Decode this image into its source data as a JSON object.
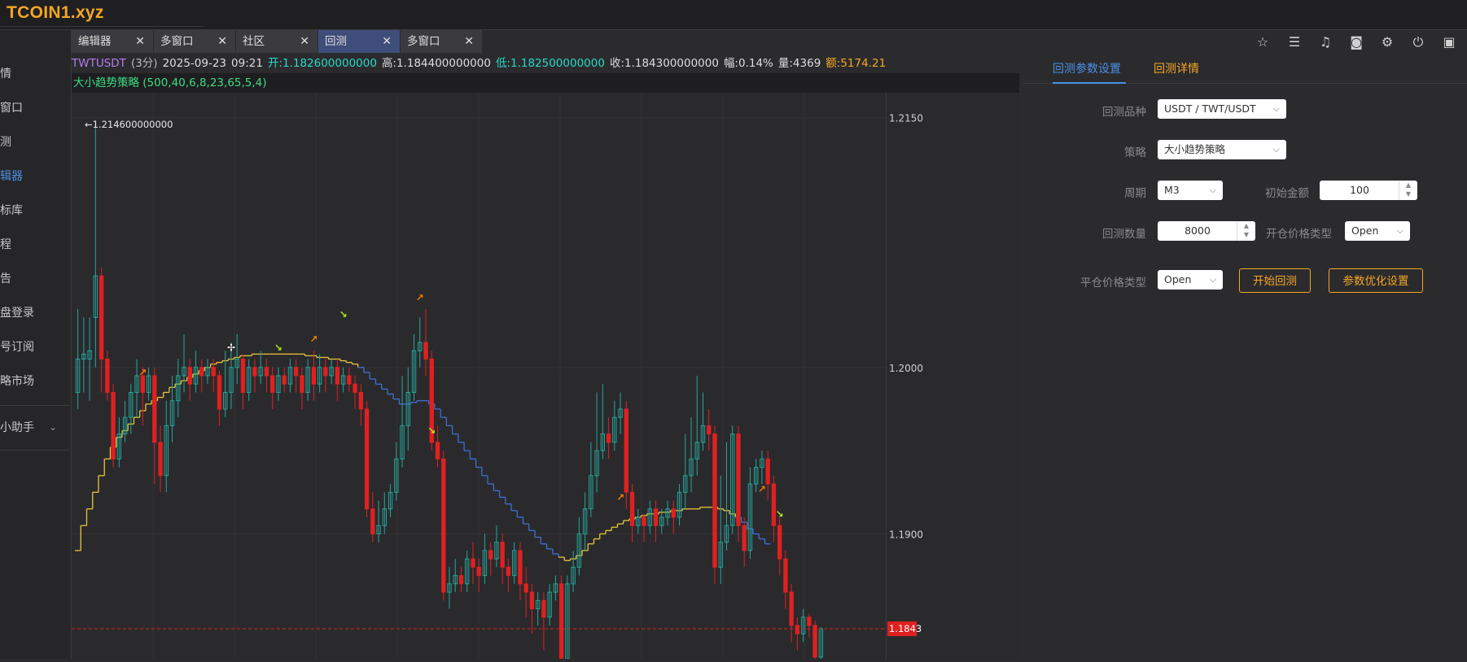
{
  "brand": "TCOIN1.xyz",
  "sidebar": {
    "items": [
      {
        "label": "情"
      },
      {
        "label": "窗口"
      },
      {
        "label": "测"
      },
      {
        "label": "辑器",
        "active": true
      },
      {
        "label": "标库"
      },
      {
        "label": "程"
      },
      {
        "label": "告"
      },
      {
        "label": "盘登录"
      },
      {
        "label": "号订阅"
      },
      {
        "label": "略市场"
      }
    ],
    "assistant": "小助手"
  },
  "tabs": [
    {
      "label": "编辑器"
    },
    {
      "label": "多窗口"
    },
    {
      "label": "社区"
    },
    {
      "label": "回测",
      "active": true
    },
    {
      "label": "多窗口"
    }
  ],
  "toolbar_icons": [
    "star-icon",
    "menu-icon",
    "bell-icon",
    "camera-icon",
    "gear-icon",
    "power-icon",
    "image-icon"
  ],
  "ohlc": {
    "symbol": "TWTUSDT",
    "period": "(3分)",
    "date": "2025-09-23",
    "time": "09:21",
    "open": "开:1.182600000000",
    "high": "高:1.184400000000",
    "low": "低:1.182500000000",
    "close": "收:1.184300000000",
    "change": "幅:0.14%",
    "volume": "量:4369",
    "amount": "额:5174.21"
  },
  "strategy_label": "大小趋势策略 (500,40,6,8,23,65,5,4)",
  "chart_data": {
    "type": "candlestick",
    "ymin": 1.1825,
    "ymax": 1.2165,
    "y_ticks": [
      1.215,
      1.2,
      1.19
    ],
    "y_tick_labels": [
      "1.2150",
      "1.2000",
      "1.1900"
    ],
    "last_price_label": "1.1843",
    "last_price": 1.1843,
    "max_marker_label": "←1.214600000000",
    "max_marker_value": 1.2146,
    "candles": [
      [
        1.1985,
        1.2005,
        1.1975,
        1.2035
      ],
      [
        1.2005,
        1.2008,
        1.1985,
        1.203
      ],
      [
        1.2005,
        1.201,
        1.198,
        1.203
      ],
      [
        1.203,
        1.2055,
        1.2,
        1.2146
      ],
      [
        1.2055,
        1.2005,
        1.1985,
        1.206
      ],
      [
        1.2005,
        1.1985,
        1.198,
        1.201
      ],
      [
        1.1985,
        1.1945,
        1.194,
        1.199
      ],
      [
        1.1945,
        1.196,
        1.194,
        1.197
      ],
      [
        1.196,
        1.197,
        1.1955,
        1.198
      ],
      [
        1.197,
        1.1985,
        1.196,
        1.199
      ],
      [
        1.1985,
        1.1995,
        1.197,
        1.2005
      ],
      [
        1.1995,
        1.1985,
        1.1965,
        1.2
      ],
      [
        1.1985,
        1.1995,
        1.198,
        1.2
      ],
      [
        1.1995,
        1.1955,
        1.193,
        1.2
      ],
      [
        1.1955,
        1.1935,
        1.1925,
        1.1965
      ],
      [
        1.1935,
        1.1965,
        1.1925,
        1.198
      ],
      [
        1.1965,
        1.198,
        1.1955,
        1.1995
      ],
      [
        1.198,
        1.1995,
        1.197,
        1.2005
      ],
      [
        1.1995,
        1.2,
        1.1985,
        1.202
      ],
      [
        1.2,
        1.199,
        1.198,
        1.2005
      ],
      [
        1.199,
        1.2,
        1.1985,
        1.201
      ],
      [
        1.2,
        1.1995,
        1.1985,
        1.2005
      ],
      [
        1.1995,
        1.2,
        1.199,
        1.2005
      ],
      [
        1.2,
        1.1995,
        1.1985,
        1.2005
      ],
      [
        1.1995,
        1.1975,
        1.1965,
        1.1998
      ],
      [
        1.1975,
        1.1985,
        1.197,
        1.201
      ],
      [
        1.1985,
        1.2,
        1.1975,
        1.2015
      ],
      [
        1.2,
        1.2005,
        1.199,
        1.202
      ],
      [
        1.2005,
        1.1985,
        1.1975,
        1.2008
      ],
      [
        1.1985,
        1.2,
        1.198,
        1.2005
      ],
      [
        1.2,
        1.1995,
        1.1985,
        1.2005
      ],
      [
        1.1995,
        1.2,
        1.199,
        1.201
      ],
      [
        1.2,
        1.1995,
        1.1985,
        1.2005
      ],
      [
        1.1995,
        1.1985,
        1.1975,
        1.2
      ],
      [
        1.1985,
        1.1995,
        1.198,
        1.2
      ],
      [
        1.1995,
        1.199,
        1.1985,
        1.2
      ],
      [
        1.199,
        1.2,
        1.1985,
        1.2005
      ],
      [
        1.2,
        1.1995,
        1.1985,
        1.2005
      ],
      [
        1.1995,
        1.1985,
        1.1975,
        1.2
      ],
      [
        1.1985,
        1.2,
        1.198,
        1.2005
      ],
      [
        1.2,
        1.199,
        1.198,
        1.201
      ],
      [
        1.199,
        1.2,
        1.1985,
        1.2008
      ],
      [
        1.2,
        1.1995,
        1.1985,
        1.2005
      ],
      [
        1.1995,
        1.2,
        1.199,
        1.2005
      ],
      [
        1.2,
        1.199,
        1.198,
        1.2005
      ],
      [
        1.199,
        1.1995,
        1.1985,
        1.2
      ],
      [
        1.1995,
        1.199,
        1.1985,
        1.2
      ],
      [
        1.199,
        1.1985,
        1.1975,
        1.1995
      ],
      [
        1.1985,
        1.1975,
        1.1965,
        1.199
      ],
      [
        1.1975,
        1.1915,
        1.191,
        1.198
      ],
      [
        1.1915,
        1.19,
        1.1895,
        1.1925
      ],
      [
        1.19,
        1.1905,
        1.1895,
        1.192
      ],
      [
        1.1905,
        1.1915,
        1.19,
        1.1925
      ],
      [
        1.1915,
        1.1925,
        1.191,
        1.193
      ],
      [
        1.1925,
        1.1945,
        1.192,
        1.1955
      ],
      [
        1.1945,
        1.1965,
        1.194,
        1.1995
      ],
      [
        1.1965,
        1.1985,
        1.195,
        1.2
      ],
      [
        1.1985,
        1.201,
        1.198,
        1.202
      ],
      [
        1.201,
        1.2015,
        1.2,
        1.203
      ],
      [
        1.2015,
        1.2005,
        1.1995,
        1.2035
      ],
      [
        1.2005,
        1.1955,
        1.195,
        1.201
      ],
      [
        1.1955,
        1.1945,
        1.194,
        1.1965
      ],
      [
        1.1945,
        1.1865,
        1.186,
        1.195
      ],
      [
        1.1865,
        1.187,
        1.1855,
        1.188
      ],
      [
        1.187,
        1.1875,
        1.1865,
        1.1885
      ],
      [
        1.1875,
        1.187,
        1.1865,
        1.188
      ],
      [
        1.187,
        1.1885,
        1.1865,
        1.189
      ],
      [
        1.1885,
        1.188,
        1.187,
        1.1895
      ],
      [
        1.188,
        1.1875,
        1.1865,
        1.1885
      ],
      [
        1.1875,
        1.189,
        1.187,
        1.19
      ],
      [
        1.189,
        1.1885,
        1.1875,
        1.1895
      ],
      [
        1.1885,
        1.1895,
        1.188,
        1.1905
      ],
      [
        1.1895,
        1.188,
        1.187,
        1.19
      ],
      [
        1.188,
        1.1875,
        1.1865,
        1.1885
      ],
      [
        1.1875,
        1.189,
        1.187,
        1.1895
      ],
      [
        1.189,
        1.187,
        1.186,
        1.1895
      ],
      [
        1.187,
        1.1865,
        1.185,
        1.188
      ],
      [
        1.1865,
        1.1855,
        1.184,
        1.187
      ],
      [
        1.1855,
        1.186,
        1.1845,
        1.1865
      ],
      [
        1.186,
        1.185,
        1.183,
        1.1865
      ],
      [
        1.185,
        1.1865,
        1.1845,
        1.187
      ],
      [
        1.1865,
        1.187,
        1.186,
        1.1875
      ],
      [
        1.187,
        1.1825,
        1.1815,
        1.1875
      ],
      [
        1.1825,
        1.187,
        1.182,
        1.1875
      ],
      [
        1.187,
        1.188,
        1.1865,
        1.189
      ],
      [
        1.188,
        1.19,
        1.1875,
        1.191
      ],
      [
        1.19,
        1.1915,
        1.189,
        1.1925
      ],
      [
        1.1915,
        1.1935,
        1.191,
        1.1955
      ],
      [
        1.1935,
        1.195,
        1.1925,
        1.1985
      ],
      [
        1.195,
        1.196,
        1.1945,
        1.199
      ],
      [
        1.196,
        1.1955,
        1.1945,
        1.197
      ],
      [
        1.1955,
        1.197,
        1.195,
        1.198
      ],
      [
        1.197,
        1.1975,
        1.196,
        1.1985
      ],
      [
        1.1975,
        1.1925,
        1.1915,
        1.198
      ],
      [
        1.1925,
        1.1905,
        1.1895,
        1.193
      ],
      [
        1.1905,
        1.191,
        1.19,
        1.1915
      ],
      [
        1.191,
        1.1905,
        1.1895,
        1.1912
      ],
      [
        1.1905,
        1.1915,
        1.19,
        1.192
      ],
      [
        1.1915,
        1.1905,
        1.1895,
        1.192
      ],
      [
        1.1905,
        1.191,
        1.19,
        1.1915
      ],
      [
        1.191,
        1.1915,
        1.1905,
        1.192
      ],
      [
        1.1915,
        1.191,
        1.19,
        1.192
      ],
      [
        1.191,
        1.1925,
        1.1905,
        1.193
      ],
      [
        1.1925,
        1.1935,
        1.1915,
        1.196
      ],
      [
        1.1935,
        1.1945,
        1.1925,
        1.197
      ],
      [
        1.1945,
        1.1955,
        1.1935,
        1.1995
      ],
      [
        1.1955,
        1.1965,
        1.195,
        1.1985
      ],
      [
        1.1965,
        1.196,
        1.195,
        1.1975
      ],
      [
        1.196,
        1.188,
        1.187,
        1.1965
      ],
      [
        1.188,
        1.1895,
        1.187,
        1.1935
      ],
      [
        1.1895,
        1.1905,
        1.189,
        1.1955
      ],
      [
        1.1905,
        1.196,
        1.19,
        1.1965
      ],
      [
        1.196,
        1.1905,
        1.1895,
        1.1965
      ],
      [
        1.1905,
        1.189,
        1.188,
        1.191
      ],
      [
        1.189,
        1.193,
        1.1885,
        1.194
      ],
      [
        1.193,
        1.194,
        1.1925,
        1.1945
      ],
      [
        1.194,
        1.1945,
        1.193,
        1.195
      ],
      [
        1.1945,
        1.193,
        1.192,
        1.195
      ],
      [
        1.193,
        1.1905,
        1.1895,
        1.1935
      ],
      [
        1.1905,
        1.1885,
        1.1875,
        1.191
      ],
      [
        1.1885,
        1.1865,
        1.1855,
        1.189
      ],
      [
        1.1865,
        1.1845,
        1.1835,
        1.187
      ],
      [
        1.1845,
        1.184,
        1.183,
        1.185
      ],
      [
        1.184,
        1.185,
        1.1835,
        1.1855
      ],
      [
        1.185,
        1.1845,
        1.1838,
        1.1852
      ],
      [
        1.1845,
        1.1826,
        1.1825,
        1.1848
      ],
      [
        1.1826,
        1.1843,
        1.1825,
        1.1844
      ]
    ],
    "step_line": [
      1.189,
      1.1905,
      1.1915,
      1.1925,
      1.1935,
      1.1945,
      1.1952,
      1.1958,
      1.1962,
      1.1966,
      1.197,
      1.1974,
      1.1978,
      1.198,
      1.1982,
      1.1985,
      1.1988,
      1.199,
      1.1992,
      1.1994,
      1.1996,
      1.1998,
      1.2,
      1.2002,
      1.2003,
      1.2004,
      1.2005,
      1.2006,
      1.2007,
      1.2007,
      1.2008,
      1.2008,
      1.2008,
      1.2008,
      1.2008,
      1.2008,
      1.2008,
      1.2008,
      1.2008,
      1.2007,
      1.2007,
      1.2006,
      1.2006,
      1.2005,
      1.2005,
      1.2004,
      1.2003,
      1.2002,
      1.2,
      1.1997,
      1.1993,
      1.199,
      1.1987,
      1.1984,
      1.1981,
      1.1978,
      1.1978,
      1.1979,
      1.198,
      1.198,
      1.1978,
      1.1975,
      1.197,
      1.1965,
      1.196,
      1.1955,
      1.195,
      1.1945,
      1.194,
      1.1935,
      1.193,
      1.1926,
      1.1922,
      1.1918,
      1.1914,
      1.191,
      1.1906,
      1.1902,
      1.1898,
      1.1894,
      1.1891,
      1.1888,
      1.1886,
      1.1884,
      1.1885,
      1.1887,
      1.189,
      1.1894,
      1.1897,
      1.19,
      1.1902,
      1.1904,
      1.1906,
      1.1908,
      1.1909,
      1.191,
      1.1911,
      1.1912,
      1.1912,
      1.1913,
      1.1913,
      1.1914,
      1.1914,
      1.1915,
      1.1915,
      1.1915,
      1.1916,
      1.1916,
      1.1916,
      1.1915,
      1.1914,
      1.1912,
      1.191,
      1.1907,
      1.1903,
      1.19,
      1.1897,
      1.1894
    ],
    "step_colors": [
      "yellow",
      "blue"
    ]
  },
  "backtest": {
    "tabs": [
      {
        "label": "回测参数设置",
        "active": true
      },
      {
        "label": "回测详情"
      }
    ],
    "fields": {
      "symbol_label": "回测品种",
      "symbol_value": "USDT / TWT/USDT",
      "strategy_label": "策略",
      "strategy_value": "大小趋势策略",
      "period_label": "周期",
      "period_value": "M3",
      "init_label": "初始金额",
      "init_value": "100",
      "count_label": "回测数量",
      "count_value": "8000",
      "open_price_label": "开仓价格类型",
      "open_price_value": "Open",
      "close_price_label": "平仓价格类型",
      "close_price_value": "Open"
    },
    "start_button": "开始回测",
    "optimize_button": "参数优化设置"
  },
  "colors": {
    "up": "#26a69a",
    "down": "#e02020",
    "accent": "#f5a623",
    "blue": "#4a90e2"
  }
}
